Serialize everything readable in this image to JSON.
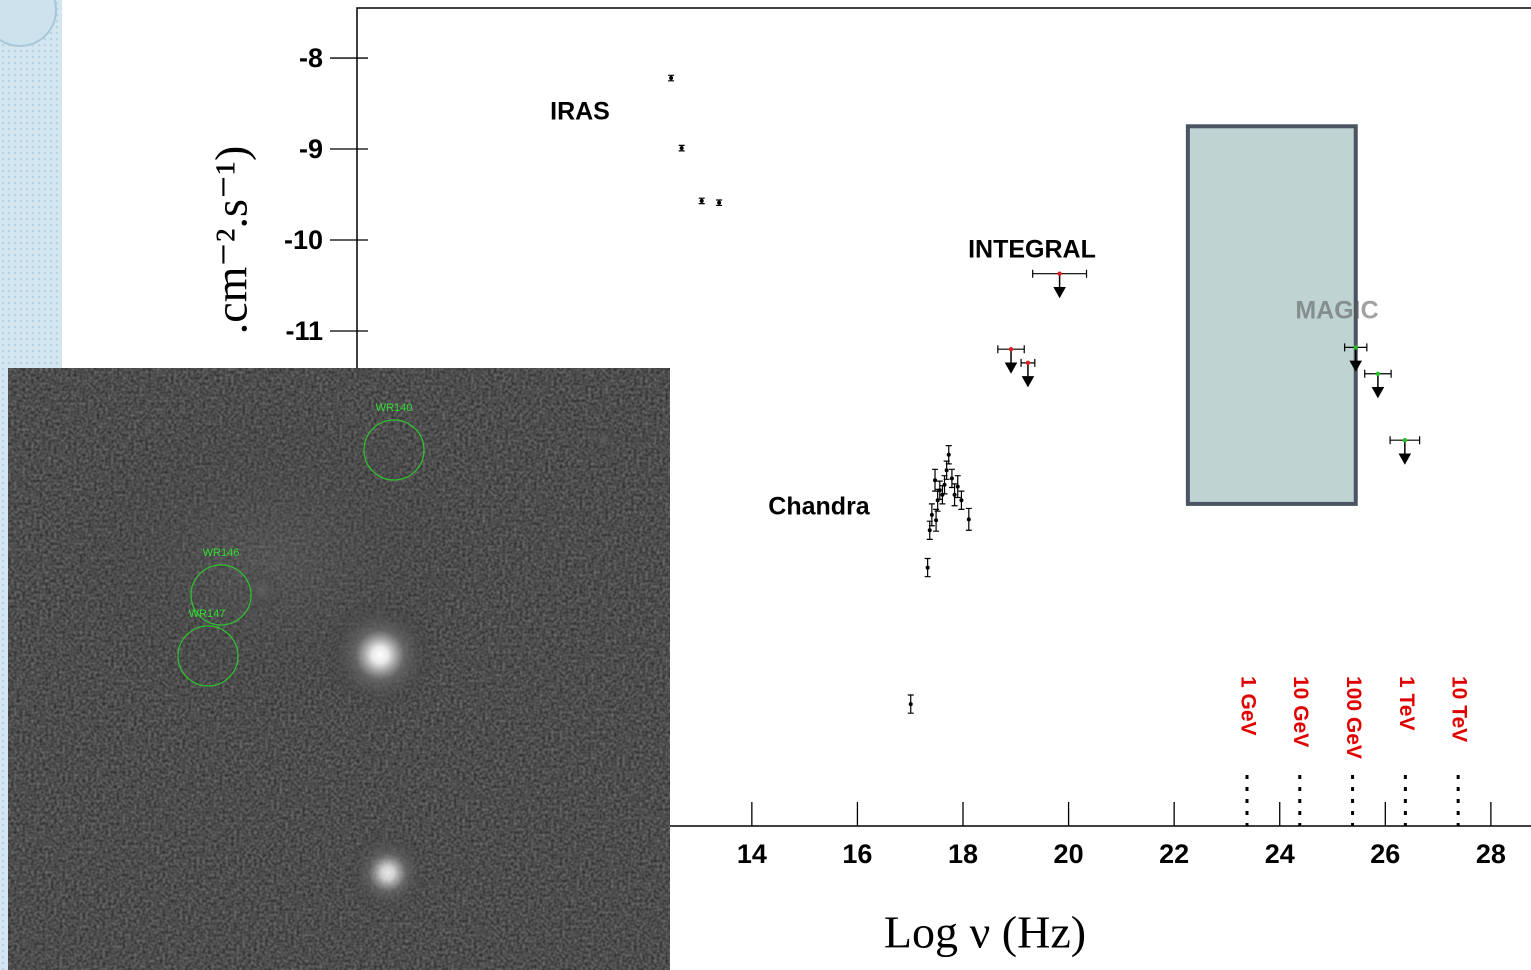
{
  "chart_data": {
    "type": "scatter",
    "ylabel": ".cm⁻².s⁻¹)",
    "xlabel": "Log ν   (Hz)",
    "xlim": [
      6.52,
      28.76
    ],
    "ylim": [
      -16.44,
      -7.45
    ],
    "xticks": [
      14,
      16,
      18,
      20,
      22,
      24,
      26,
      28
    ],
    "yticks": [
      -8,
      -9,
      -10,
      -11
    ],
    "annotations": [
      "IRAS",
      "INTEGRAL",
      "Chandra",
      "MAGIC"
    ],
    "points": [
      {
        "color": "#000000",
        "x": [
          12.47,
          12.67,
          13.05,
          13.38
        ],
        "y": [
          -8.22,
          -8.99,
          -9.57,
          -9.59
        ],
        "yerr": [
          0.03,
          0.03,
          0.03,
          0.03
        ]
      },
      {
        "color": "#000000",
        "x": [
          17.73,
          17.47,
          17.56,
          17.65,
          17.79,
          17.9,
          17.52,
          17.41,
          17.37,
          17.61,
          17.84,
          17.97,
          17.69,
          17.49,
          18.11,
          17.33,
          17.01
        ],
        "y": [
          -12.36,
          -12.64,
          -12.75,
          -12.69,
          -12.62,
          -12.71,
          -12.86,
          -13.02,
          -13.19,
          -12.8,
          -12.8,
          -12.86,
          -12.53,
          -13.08,
          -13.07,
          -13.6,
          -15.1
        ],
        "yerr": [
          0.1,
          0.12,
          0.1,
          0.1,
          0.1,
          0.12,
          0.12,
          0.12,
          0.1,
          0.1,
          0.12,
          0.1,
          0.1,
          0.12,
          0.12,
          0.1,
          0.1
        ]
      }
    ],
    "upper_limits": [
      {
        "color": "#e02020",
        "x": [
          19.83,
          18.91,
          19.23
        ],
        "y": [
          -10.37,
          -11.2,
          -11.35
        ],
        "xerr": [
          0.51,
          0.25,
          0.13
        ]
      },
      {
        "color": "#20c020",
        "x": [
          25.44,
          25.86,
          26.37
        ],
        "y": [
          -11.18,
          -11.47,
          -12.2
        ],
        "xerr": [
          0.21,
          0.25,
          0.28
        ]
      }
    ],
    "region": {
      "xlim": [
        22.26,
        25.44
      ],
      "ylim": [
        -12.9,
        -8.75
      ],
      "color": "#bfd4d2"
    },
    "energy_markers": [
      {
        "label": "1 GeV",
        "x": 23.38
      },
      {
        "label": "10 GeV",
        "x": 24.38
      },
      {
        "label": "100 GeV",
        "x": 25.38
      },
      {
        "label": "1 TeV",
        "x": 26.38
      },
      {
        "label": "10 TeV",
        "x": 27.38
      }
    ],
    "inset_labels": [
      "WR140",
      "WR146",
      "WR147"
    ]
  }
}
